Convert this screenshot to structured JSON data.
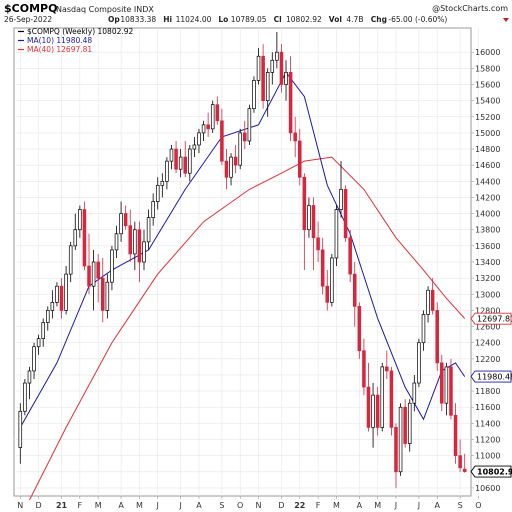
{
  "header": {
    "symbol": "$COMPQ",
    "name": "Nasdaq Composite INDX",
    "brand": "@StockCharts.com",
    "date": "26-Sep-2022",
    "stats": [
      {
        "label": "Op",
        "value": "10833.38"
      },
      {
        "label": "Hi",
        "value": "11024.00"
      },
      {
        "label": "Lo",
        "value": "10789.05"
      },
      {
        "label": "Cl",
        "value": "10802.92"
      },
      {
        "label": "Vol",
        "value": "4.7B"
      },
      {
        "label": "Chg",
        "value": "-65.00 (-0.60%)"
      }
    ]
  },
  "legend": [
    {
      "text": "$COMPQ (Weekly) 10802.92",
      "color": "#000000"
    },
    {
      "text": "MA(10) 11980.48",
      "color": "#1a1aa6"
    },
    {
      "text": "MA(40) 12697.81",
      "color": "#e0303a"
    }
  ],
  "price_tags": [
    {
      "text": "12697.81",
      "value": 12697.81,
      "color": "#e0303a"
    },
    {
      "text": "11980.48",
      "value": 11980.48,
      "color": "#1a1aa6"
    },
    {
      "text": "10802.92",
      "value": 10802.92,
      "color": "#000000"
    }
  ],
  "colors": {
    "up": "#ffffff",
    "down": "#d7263d",
    "ma10": "#1a1aa6",
    "ma40": "#e0303a",
    "grid": "#e6e6e6"
  },
  "chart_data": {
    "type": "candlestick",
    "interval": "weekly",
    "ylim": [
      10500,
      16300
    ],
    "y_ticks": [
      10600,
      10800,
      11000,
      11200,
      11400,
      11600,
      11800,
      12000,
      12200,
      12400,
      12600,
      12800,
      13000,
      13200,
      13400,
      13600,
      13800,
      14000,
      14200,
      14400,
      14600,
      14800,
      15000,
      15200,
      15400,
      15600,
      15800,
      16000
    ],
    "x_ticks": [
      {
        "label": "N",
        "bar": 0
      },
      {
        "label": "D",
        "bar": 4
      },
      {
        "label": "21",
        "bar": 9,
        "bold": true
      },
      {
        "label": "F",
        "bar": 13
      },
      {
        "label": "M",
        "bar": 17
      },
      {
        "label": "A",
        "bar": 22
      },
      {
        "label": "M",
        "bar": 26
      },
      {
        "label": "J",
        "bar": 30
      },
      {
        "label": "J",
        "bar": 35
      },
      {
        "label": "A",
        "bar": 39
      },
      {
        "label": "S",
        "bar": 44
      },
      {
        "label": "O",
        "bar": 48
      },
      {
        "label": "N",
        "bar": 52
      },
      {
        "label": "D",
        "bar": 57
      },
      {
        "label": "22",
        "bar": 61,
        "bold": true
      },
      {
        "label": "F",
        "bar": 65
      },
      {
        "label": "M",
        "bar": 69
      },
      {
        "label": "A",
        "bar": 74
      },
      {
        "label": "M",
        "bar": 78
      },
      {
        "label": "J",
        "bar": 82
      },
      {
        "label": "J",
        "bar": 87
      },
      {
        "label": "A",
        "bar": 91
      },
      {
        "label": "S",
        "bar": 96
      },
      {
        "label": "O",
        "bar": 100
      }
    ],
    "candles": [
      [
        11100,
        11650,
        10900,
        11550
      ],
      [
        11550,
        11950,
        11500,
        11900
      ],
      [
        11900,
        12100,
        11700,
        12050
      ],
      [
        12050,
        12400,
        11950,
        12350
      ],
      [
        12350,
        12500,
        12250,
        12450
      ],
      [
        12450,
        12700,
        12350,
        12650
      ],
      [
        12650,
        12850,
        12550,
        12800
      ],
      [
        12800,
        13050,
        12700,
        12900
      ],
      [
        12900,
        13150,
        12850,
        13100
      ],
      [
        13100,
        13200,
        12700,
        12800
      ],
      [
        12800,
        13350,
        12750,
        13250
      ],
      [
        13250,
        13650,
        13150,
        13600
      ],
      [
        13600,
        14000,
        13550,
        13800
      ],
      [
        13800,
        14100,
        13700,
        14050
      ],
      [
        14050,
        14150,
        13300,
        13350
      ],
      [
        13350,
        13750,
        13000,
        13100
      ],
      [
        13100,
        13550,
        12800,
        13400
      ],
      [
        13400,
        13500,
        12900,
        13200
      ],
      [
        13200,
        13450,
        12650,
        12800
      ],
      [
        12800,
        13250,
        12700,
        13150
      ],
      [
        13150,
        13600,
        13050,
        13550
      ],
      [
        13550,
        13850,
        13450,
        13750
      ],
      [
        13750,
        14150,
        13650,
        14000
      ],
      [
        14000,
        14100,
        13800,
        13850
      ],
      [
        13850,
        14050,
        13400,
        13500
      ],
      [
        13500,
        13900,
        13300,
        13800
      ],
      [
        13800,
        13900,
        13150,
        13400
      ],
      [
        13400,
        13800,
        13300,
        13650
      ],
      [
        13650,
        14050,
        13550,
        13950
      ],
      [
        13950,
        14250,
        13850,
        14150
      ],
      [
        14150,
        14450,
        14050,
        14350
      ],
      [
        14350,
        14500,
        14200,
        14400
      ],
      [
        14400,
        14700,
        14300,
        14650
      ],
      [
        14650,
        14850,
        14550,
        14800
      ],
      [
        14800,
        14900,
        14500,
        14550
      ],
      [
        14550,
        14800,
        14450,
        14700
      ],
      [
        14700,
        14900,
        14450,
        14500
      ],
      [
        14500,
        14850,
        14400,
        14800
      ],
      [
        14800,
        14950,
        14700,
        14850
      ],
      [
        14850,
        15050,
        14750,
        15000
      ],
      [
        15000,
        15150,
        14900,
        15100
      ],
      [
        15100,
        15250,
        14950,
        15050
      ],
      [
        15050,
        15400,
        15000,
        15350
      ],
      [
        15350,
        15450,
        15100,
        15150
      ],
      [
        15150,
        15300,
        14600,
        14650
      ],
      [
        14650,
        14800,
        14300,
        14450
      ],
      [
        14450,
        14750,
        14350,
        14700
      ],
      [
        14700,
        14850,
        14500,
        14600
      ],
      [
        14600,
        15050,
        14550,
        15000
      ],
      [
        15000,
        15150,
        14800,
        14900
      ],
      [
        14900,
        15350,
        14850,
        15300
      ],
      [
        15300,
        15700,
        15250,
        15650
      ],
      [
        15650,
        16050,
        15600,
        15950
      ],
      [
        15950,
        16100,
        15300,
        15400
      ],
      [
        15400,
        15800,
        15200,
        15750
      ],
      [
        15750,
        16000,
        15600,
        15900
      ],
      [
        15900,
        16250,
        15800,
        16000
      ],
      [
        16000,
        16100,
        15500,
        15600
      ],
      [
        15600,
        15900,
        15400,
        15750
      ],
      [
        15750,
        15950,
        14900,
        15000
      ],
      [
        15000,
        15200,
        14700,
        14900
      ],
      [
        14900,
        15050,
        14350,
        14450
      ],
      [
        14450,
        14500,
        13300,
        13800
      ],
      [
        13800,
        14200,
        13700,
        14100
      ],
      [
        14100,
        14200,
        13300,
        13700
      ],
      [
        13700,
        13900,
        13400,
        13550
      ],
      [
        13550,
        13700,
        13000,
        13100
      ],
      [
        13100,
        13300,
        12800,
        12900
      ],
      [
        12900,
        13500,
        12850,
        13450
      ],
      [
        13450,
        14100,
        13350,
        14050
      ],
      [
        14050,
        14650,
        13950,
        14300
      ],
      [
        14300,
        14350,
        13650,
        13700
      ],
      [
        13700,
        13800,
        13150,
        13250
      ],
      [
        13250,
        13400,
        12600,
        12850
      ],
      [
        12850,
        12900,
        12200,
        12300
      ],
      [
        12300,
        12450,
        11750,
        11850
      ],
      [
        11850,
        12150,
        11300,
        11350
      ],
      [
        11350,
        11900,
        11100,
        11750
      ],
      [
        11750,
        11850,
        11250,
        11350
      ],
      [
        11350,
        12150,
        11300,
        12100
      ],
      [
        12100,
        12300,
        11950,
        12050
      ],
      [
        12050,
        12100,
        11250,
        11350
      ],
      [
        11350,
        11400,
        10600,
        10800
      ],
      [
        10800,
        11650,
        10750,
        11600
      ],
      [
        11600,
        11700,
        11100,
        11150
      ],
      [
        11150,
        11700,
        11050,
        11650
      ],
      [
        11650,
        12000,
        11550,
        11900
      ],
      [
        11900,
        12450,
        11850,
        12400
      ],
      [
        12400,
        12800,
        12300,
        12750
      ],
      [
        12750,
        13100,
        12650,
        13050
      ],
      [
        13050,
        13200,
        12750,
        12800
      ],
      [
        12800,
        12900,
        12050,
        12150
      ],
      [
        12150,
        12250,
        11550,
        11650
      ],
      [
        11650,
        12150,
        11500,
        12100
      ],
      [
        12100,
        12200,
        11450,
        11500
      ],
      [
        11500,
        11650,
        10900,
        11000
      ],
      [
        11000,
        11200,
        10800,
        10850
      ],
      [
        10833,
        11024,
        10789,
        10803
      ]
    ],
    "ma10": [
      [
        0,
        11350
      ],
      [
        8,
        12150
      ],
      [
        15,
        13100
      ],
      [
        20,
        13300
      ],
      [
        28,
        13550
      ],
      [
        36,
        14300
      ],
      [
        44,
        14950
      ],
      [
        52,
        15100
      ],
      [
        58,
        15750
      ],
      [
        62,
        15450
      ],
      [
        67,
        14350
      ],
      [
        72,
        13750
      ],
      [
        78,
        12700
      ],
      [
        84,
        11850
      ],
      [
        88,
        11450
      ],
      [
        92,
        12050
      ],
      [
        95,
        12150
      ],
      [
        97,
        11980
      ]
    ],
    "ma40": [
      [
        2,
        10450
      ],
      [
        10,
        11350
      ],
      [
        20,
        12400
      ],
      [
        30,
        13250
      ],
      [
        40,
        13900
      ],
      [
        50,
        14300
      ],
      [
        57,
        14500
      ],
      [
        62,
        14650
      ],
      [
        68,
        14700
      ],
      [
        75,
        14300
      ],
      [
        82,
        13700
      ],
      [
        88,
        13300
      ],
      [
        93,
        12950
      ],
      [
        97,
        12700
      ]
    ]
  }
}
